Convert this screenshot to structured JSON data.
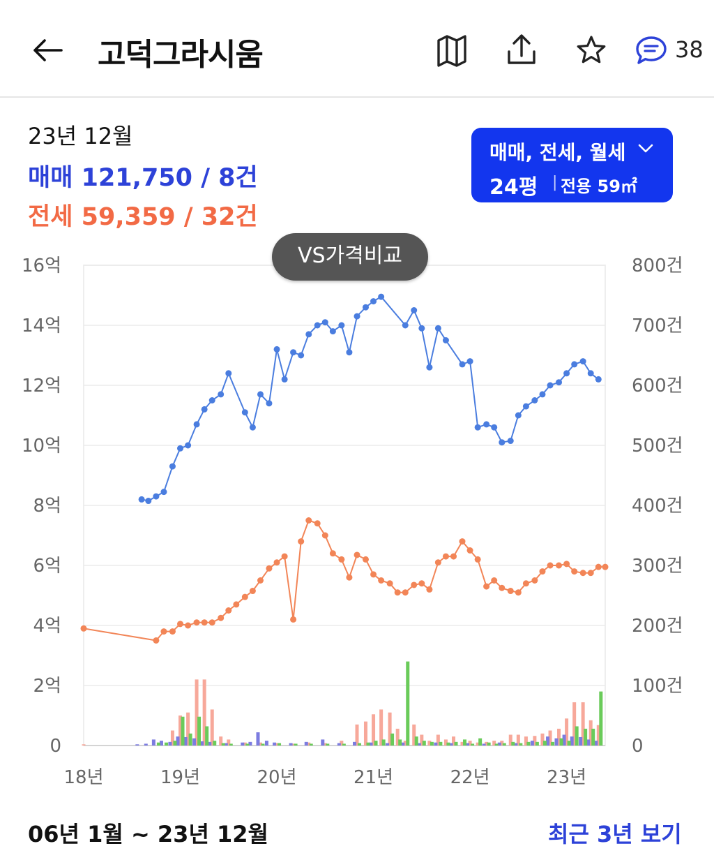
{
  "header": {
    "title": "고덕그라시움",
    "comment_count": "38",
    "icons": [
      "back-arrow-icon",
      "map-book-icon",
      "share-icon",
      "star-icon",
      "comment-icon"
    ]
  },
  "summary": {
    "period": "23년 12월",
    "trade_label": "매매",
    "trade_value": "121,750 / 8건",
    "jeonse_label": "전세",
    "jeonse_value": "59,359 / 32건"
  },
  "filter": {
    "types": "매매, 전세, 월세",
    "size": "24평",
    "area": "전용 59㎡"
  },
  "compare_button": "VS가격비교",
  "footer": {
    "range": "06년 1월 ~ 23년 12월",
    "recent_link": "최근 3년 보기"
  },
  "colors": {
    "trade": "#4a7ddf",
    "jeonse": "#f28557",
    "trade_bar": "#7c7ce0",
    "jeonse_bar": "#f7a89a",
    "monthly_bar": "#6acb5a",
    "accent": "#1336ee"
  },
  "chart_data": {
    "type": "line",
    "x_axis": {
      "ticks": [
        "18년",
        "19년",
        "20년",
        "21년",
        "22년",
        "23년"
      ],
      "tick_values": [
        2018,
        2019,
        2020,
        2021,
        2022,
        2023
      ],
      "range": [
        2018,
        2023.4
      ]
    },
    "y_left": {
      "ticks": [
        "0",
        "2억",
        "4억",
        "6억",
        "8억",
        "10억",
        "12억",
        "14억",
        "16억"
      ],
      "tick_values": [
        0,
        2,
        4,
        6,
        8,
        10,
        12,
        14,
        16
      ],
      "unit": "억",
      "range": [
        0,
        16
      ]
    },
    "y_right": {
      "ticks": [
        "0",
        "100건",
        "200건",
        "300건",
        "400건",
        "500건",
        "600건",
        "700건",
        "800건"
      ],
      "tick_values": [
        0,
        100,
        200,
        300,
        400,
        500,
        600,
        700,
        800
      ],
      "unit": "건",
      "range": [
        0,
        800
      ]
    },
    "grid": true,
    "series": [
      {
        "name": "매매",
        "axis": "left",
        "points": [
          [
            2018.6,
            8.2
          ],
          [
            2018.67,
            8.15
          ],
          [
            2018.75,
            8.3
          ],
          [
            2018.83,
            8.45
          ],
          [
            2018.92,
            9.3
          ],
          [
            2019.0,
            9.9
          ],
          [
            2019.08,
            10.0
          ],
          [
            2019.17,
            10.7
          ],
          [
            2019.25,
            11.2
          ],
          [
            2019.33,
            11.5
          ],
          [
            2019.42,
            11.7
          ],
          [
            2019.5,
            12.4
          ],
          [
            2019.67,
            11.1
          ],
          [
            2019.75,
            10.6
          ],
          [
            2019.83,
            11.7
          ],
          [
            2019.92,
            11.4
          ],
          [
            2020.0,
            13.2
          ],
          [
            2020.08,
            12.2
          ],
          [
            2020.17,
            13.1
          ],
          [
            2020.25,
            13.0
          ],
          [
            2020.33,
            13.7
          ],
          [
            2020.42,
            14.0
          ],
          [
            2020.5,
            14.1
          ],
          [
            2020.58,
            13.8
          ],
          [
            2020.67,
            14.0
          ],
          [
            2020.75,
            13.1
          ],
          [
            2020.83,
            14.3
          ],
          [
            2020.92,
            14.6
          ],
          [
            2021.0,
            14.8
          ],
          [
            2021.08,
            14.95
          ],
          [
            2021.33,
            14.0
          ],
          [
            2021.42,
            14.5
          ],
          [
            2021.5,
            13.9
          ],
          [
            2021.58,
            12.6
          ],
          [
            2021.67,
            13.9
          ],
          [
            2021.75,
            13.5
          ],
          [
            2021.92,
            12.7
          ],
          [
            2022.0,
            12.8
          ],
          [
            2022.08,
            10.6
          ],
          [
            2022.17,
            10.7
          ],
          [
            2022.25,
            10.6
          ],
          [
            2022.33,
            10.1
          ],
          [
            2022.42,
            10.15
          ],
          [
            2022.5,
            11.0
          ],
          [
            2022.58,
            11.3
          ],
          [
            2022.67,
            11.5
          ],
          [
            2022.75,
            11.7
          ],
          [
            2022.83,
            12.0
          ],
          [
            2022.92,
            12.1
          ],
          [
            2023.0,
            12.4
          ],
          [
            2023.08,
            12.7
          ],
          [
            2023.17,
            12.8
          ],
          [
            2023.25,
            12.4
          ],
          [
            2023.33,
            12.2
          ]
        ]
      },
      {
        "name": "전세",
        "axis": "left",
        "points": [
          [
            2018.0,
            3.9
          ],
          [
            2018.75,
            3.5
          ],
          [
            2018.83,
            3.8
          ],
          [
            2018.92,
            3.8
          ],
          [
            2019.0,
            4.05
          ],
          [
            2019.08,
            4.0
          ],
          [
            2019.17,
            4.1
          ],
          [
            2019.25,
            4.1
          ],
          [
            2019.33,
            4.1
          ],
          [
            2019.42,
            4.25
          ],
          [
            2019.5,
            4.5
          ],
          [
            2019.58,
            4.7
          ],
          [
            2019.67,
            4.95
          ],
          [
            2019.75,
            5.15
          ],
          [
            2019.83,
            5.5
          ],
          [
            2019.92,
            5.9
          ],
          [
            2020.0,
            6.1
          ],
          [
            2020.08,
            6.3
          ],
          [
            2020.17,
            4.2
          ],
          [
            2020.25,
            6.8
          ],
          [
            2020.33,
            7.5
          ],
          [
            2020.42,
            7.4
          ],
          [
            2020.5,
            7.0
          ],
          [
            2020.58,
            6.4
          ],
          [
            2020.67,
            6.2
          ],
          [
            2020.75,
            5.6
          ],
          [
            2020.83,
            6.35
          ],
          [
            2020.92,
            6.2
          ],
          [
            2021.0,
            5.7
          ],
          [
            2021.08,
            5.5
          ],
          [
            2021.17,
            5.4
          ],
          [
            2021.25,
            5.1
          ],
          [
            2021.33,
            5.1
          ],
          [
            2021.42,
            5.35
          ],
          [
            2021.5,
            5.4
          ],
          [
            2021.58,
            5.2
          ],
          [
            2021.67,
            6.1
          ],
          [
            2021.75,
            6.3
          ],
          [
            2021.83,
            6.3
          ],
          [
            2021.92,
            6.8
          ],
          [
            2022.0,
            6.5
          ],
          [
            2022.08,
            6.2
          ],
          [
            2022.17,
            5.3
          ],
          [
            2022.25,
            5.5
          ],
          [
            2022.33,
            5.25
          ],
          [
            2022.42,
            5.15
          ],
          [
            2022.5,
            5.1
          ],
          [
            2022.58,
            5.4
          ],
          [
            2022.67,
            5.5
          ],
          [
            2022.75,
            5.8
          ],
          [
            2022.83,
            6.0
          ],
          [
            2022.92,
            6.0
          ],
          [
            2023.0,
            6.05
          ],
          [
            2023.08,
            5.8
          ],
          [
            2023.17,
            5.75
          ],
          [
            2023.25,
            5.75
          ],
          [
            2023.33,
            5.95
          ],
          [
            2023.4,
            5.95
          ]
        ]
      }
    ],
    "volume_series": [
      {
        "name": "매매 거래량",
        "axis": "right",
        "points": [
          [
            2018.58,
            2
          ],
          [
            2018.67,
            3
          ],
          [
            2018.75,
            10
          ],
          [
            2018.83,
            8
          ],
          [
            2018.92,
            6
          ],
          [
            2019.0,
            15
          ],
          [
            2019.08,
            14
          ],
          [
            2019.17,
            12
          ],
          [
            2019.25,
            7
          ],
          [
            2019.33,
            6
          ],
          [
            2019.5,
            4
          ],
          [
            2019.67,
            5
          ],
          [
            2019.75,
            6
          ],
          [
            2019.83,
            22
          ],
          [
            2019.92,
            8
          ],
          [
            2020.0,
            5
          ],
          [
            2020.17,
            4
          ],
          [
            2020.33,
            6
          ],
          [
            2020.5,
            10
          ],
          [
            2020.67,
            4
          ],
          [
            2020.83,
            6
          ],
          [
            2021.0,
            5
          ],
          [
            2021.17,
            4
          ],
          [
            2021.33,
            5
          ],
          [
            2021.5,
            4
          ],
          [
            2021.67,
            5
          ],
          [
            2021.83,
            4
          ],
          [
            2022.0,
            4
          ],
          [
            2022.17,
            3
          ],
          [
            2022.33,
            5
          ],
          [
            2022.5,
            4
          ],
          [
            2022.67,
            8
          ],
          [
            2022.83,
            15
          ],
          [
            2022.92,
            12
          ],
          [
            2023.0,
            18
          ],
          [
            2023.08,
            15
          ],
          [
            2023.17,
            14
          ],
          [
            2023.25,
            10
          ],
          [
            2023.33,
            8
          ]
        ]
      },
      {
        "name": "전세 거래량",
        "axis": "right",
        "points": [
          [
            2018.0,
            2
          ],
          [
            2018.92,
            25
          ],
          [
            2019.0,
            50
          ],
          [
            2019.08,
            55
          ],
          [
            2019.17,
            110
          ],
          [
            2019.25,
            110
          ],
          [
            2019.33,
            60
          ],
          [
            2019.42,
            15
          ],
          [
            2019.5,
            10
          ],
          [
            2019.67,
            5
          ],
          [
            2019.83,
            5
          ],
          [
            2020.0,
            4
          ],
          [
            2020.17,
            3
          ],
          [
            2020.33,
            5
          ],
          [
            2020.5,
            4
          ],
          [
            2020.67,
            8
          ],
          [
            2020.83,
            35
          ],
          [
            2020.92,
            40
          ],
          [
            2021.0,
            52
          ],
          [
            2021.08,
            60
          ],
          [
            2021.17,
            55
          ],
          [
            2021.25,
            28
          ],
          [
            2021.33,
            8
          ],
          [
            2021.42,
            35
          ],
          [
            2021.5,
            18
          ],
          [
            2021.58,
            8
          ],
          [
            2021.67,
            18
          ],
          [
            2021.75,
            10
          ],
          [
            2021.83,
            15
          ],
          [
            2021.92,
            6
          ],
          [
            2022.0,
            8
          ],
          [
            2022.08,
            5
          ],
          [
            2022.17,
            6
          ],
          [
            2022.25,
            8
          ],
          [
            2022.33,
            8
          ],
          [
            2022.42,
            18
          ],
          [
            2022.5,
            18
          ],
          [
            2022.58,
            15
          ],
          [
            2022.67,
            16
          ],
          [
            2022.75,
            20
          ],
          [
            2022.83,
            25
          ],
          [
            2022.92,
            28
          ],
          [
            2023.0,
            45
          ],
          [
            2023.08,
            72
          ],
          [
            2023.17,
            72
          ],
          [
            2023.25,
            42
          ],
          [
            2023.33,
            34
          ]
        ]
      },
      {
        "name": "월세 거래량",
        "axis": "right",
        "points": [
          [
            2018.75,
            5
          ],
          [
            2018.83,
            5
          ],
          [
            2018.92,
            8
          ],
          [
            2019.0,
            48
          ],
          [
            2019.08,
            20
          ],
          [
            2019.17,
            48
          ],
          [
            2019.25,
            32
          ],
          [
            2019.33,
            8
          ],
          [
            2019.42,
            4
          ],
          [
            2019.5,
            3
          ],
          [
            2019.67,
            3
          ],
          [
            2019.83,
            3
          ],
          [
            2020.0,
            4
          ],
          [
            2020.17,
            3
          ],
          [
            2020.33,
            3
          ],
          [
            2020.5,
            3
          ],
          [
            2020.67,
            3
          ],
          [
            2020.83,
            4
          ],
          [
            2020.92,
            5
          ],
          [
            2021.0,
            8
          ],
          [
            2021.08,
            10
          ],
          [
            2021.17,
            20
          ],
          [
            2021.25,
            10
          ],
          [
            2021.33,
            140
          ],
          [
            2021.42,
            15
          ],
          [
            2021.5,
            8
          ],
          [
            2021.58,
            6
          ],
          [
            2021.67,
            6
          ],
          [
            2021.75,
            5
          ],
          [
            2021.83,
            6
          ],
          [
            2021.92,
            10
          ],
          [
            2022.0,
            3
          ],
          [
            2022.08,
            12
          ],
          [
            2022.17,
            5
          ],
          [
            2022.25,
            3
          ],
          [
            2022.33,
            4
          ],
          [
            2022.42,
            6
          ],
          [
            2022.5,
            4
          ],
          [
            2022.58,
            6
          ],
          [
            2022.67,
            6
          ],
          [
            2022.75,
            8
          ],
          [
            2022.83,
            6
          ],
          [
            2022.92,
            12
          ],
          [
            2023.0,
            8
          ],
          [
            2023.08,
            32
          ],
          [
            2023.17,
            28
          ],
          [
            2023.25,
            28
          ],
          [
            2023.33,
            90
          ]
        ]
      }
    ]
  }
}
